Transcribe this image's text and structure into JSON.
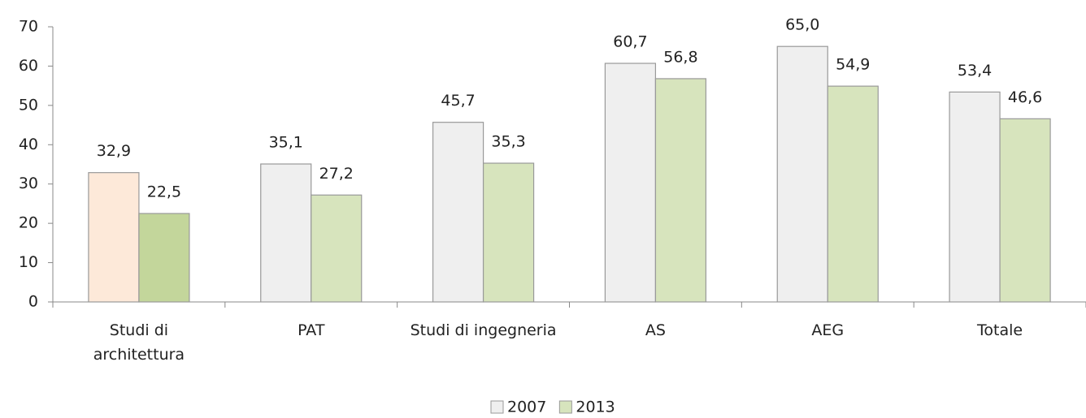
{
  "chart_data": {
    "type": "bar",
    "categories": [
      "Studi di architettura",
      "PAT",
      "Studi di ingegneria",
      "AS",
      "AEG",
      "Totale"
    ],
    "series": [
      {
        "name": "2007",
        "color": "#efefef",
        "colors": [
          "#fde9d9",
          "#efefef",
          "#efefef",
          "#efefef",
          "#efefef",
          "#efefef"
        ],
        "values": [
          32.9,
          35.1,
          45.7,
          60.7,
          65.0,
          53.4
        ],
        "value_labels": [
          "32,9",
          "35,1",
          "45,7",
          "60,7",
          "65,0",
          "53,4"
        ]
      },
      {
        "name": "2013",
        "color": "#d7e4bd",
        "colors": [
          "#c3d69b",
          "#d7e4bd",
          "#d7e4bd",
          "#d7e4bd",
          "#d7e4bd",
          "#d7e4bd"
        ],
        "values": [
          22.5,
          27.2,
          35.3,
          56.8,
          54.9,
          46.6
        ],
        "value_labels": [
          "22,5",
          "27,2",
          "35,3",
          "56,8",
          "54,9",
          "46,6"
        ]
      }
    ],
    "ylim": [
      0,
      70
    ],
    "yticks": [
      0,
      10,
      20,
      30,
      40,
      50,
      60,
      70
    ],
    "grid": false,
    "legend": "bottom"
  }
}
